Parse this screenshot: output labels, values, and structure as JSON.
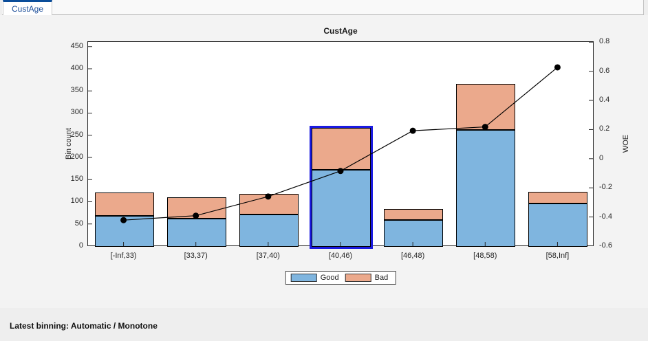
{
  "tab": {
    "label": "CustAge"
  },
  "status": {
    "text": "Latest binning: Automatic / Monotone"
  },
  "colors": {
    "good_fill": "#7fb5df",
    "bad_fill": "#eba98c",
    "selection_blue": "#1a1ae0",
    "tab_accent": "#0a4d9a",
    "woe_line": "#000000"
  },
  "chart_data": {
    "type": "bar",
    "subtype": "stacked-bar-with-line",
    "title": "CustAge",
    "xlabel": "",
    "ylabel_left": "Bin count",
    "ylabel_right": "WOE",
    "grid": false,
    "legend_position": "below",
    "categories": [
      "[-Inf,33)",
      "[33,37)",
      "[37,40)",
      "[40,46)",
      "[46,48)",
      "[48,58)",
      "[58,Inf]"
    ],
    "series": [
      {
        "name": "Good",
        "color": "#7fb5df",
        "values": [
          70,
          64,
          73,
          174,
          61,
          263,
          98
        ]
      },
      {
        "name": "Bad",
        "color": "#eba98c",
        "values": [
          53,
          47,
          47,
          94,
          25,
          105,
          26
        ]
      }
    ],
    "line_series": {
      "name": "WOE",
      "color": "#000000",
      "marker": "filled-circle",
      "values": [
        -0.4215,
        -0.391,
        -0.2596,
        -0.0843,
        0.192,
        0.2182,
        0.627
      ]
    },
    "ylim_left": [
      0,
      462
    ],
    "yticks_left": [
      0,
      50,
      100,
      150,
      200,
      250,
      300,
      350,
      400,
      450
    ],
    "ylim_right": [
      -0.6,
      0.806
    ],
    "yticks_right": [
      -0.6,
      -0.4,
      -0.2,
      0,
      0.2,
      0.4,
      0.6,
      0.8
    ],
    "selected_bin_index": 3,
    "selected_bin_label": "[40,46)"
  }
}
